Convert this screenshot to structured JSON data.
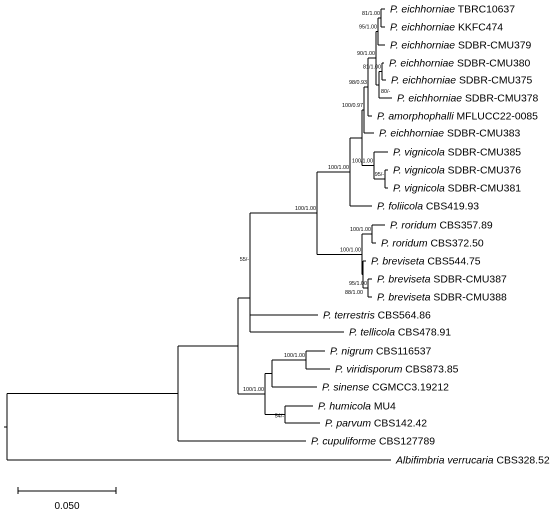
{
  "tree": {
    "taxa": {
      "t1": {
        "genus": "P.",
        "species": "eichhorniae",
        "strain": "TBRC10637"
      },
      "t2": {
        "genus": "P.",
        "species": "eichhorniae",
        "strain": "KKFC474"
      },
      "t3": {
        "genus": "P.",
        "species": "eichhorniae",
        "strain": "SDBR-CMU379"
      },
      "t4": {
        "genus": "P.",
        "species": "eichhorniae",
        "strain": "SDBR-CMU380"
      },
      "t5": {
        "genus": "P.",
        "species": "eichhorniae",
        "strain": "SDBR-CMU375"
      },
      "t6": {
        "genus": "P.",
        "species": "eichhorniae",
        "strain": "SDBR-CMU378"
      },
      "t7": {
        "genus": "P.",
        "species": "amorphophalli",
        "strain": "MFLUCC22-0085"
      },
      "t8": {
        "genus": "P.",
        "species": "eichhorniae",
        "strain": "SDBR-CMU383"
      },
      "t9": {
        "genus": "P.",
        "species": "vignicola",
        "strain": "SDBR-CMU385"
      },
      "t10": {
        "genus": "P.",
        "species": "vignicola",
        "strain": "SDBR-CMU376"
      },
      "t11": {
        "genus": "P.",
        "species": "vignicola",
        "strain": "SDBR-CMU381"
      },
      "t12": {
        "genus": "P.",
        "species": "foliicola",
        "strain": "CBS419.93"
      },
      "t13": {
        "genus": "P.",
        "species": "roridum",
        "strain": "CBS357.89"
      },
      "t14": {
        "genus": "P.",
        "species": "roridum",
        "strain": "CBS372.50"
      },
      "t15": {
        "genus": "P.",
        "species": "breviseta",
        "strain": "CBS544.75"
      },
      "t16": {
        "genus": "P.",
        "species": "breviseta",
        "strain": "SDBR-CMU387"
      },
      "t17": {
        "genus": "P.",
        "species": "breviseta",
        "strain": "SDBR-CMU388"
      },
      "t18": {
        "genus": "P.",
        "species": "terrestris",
        "strain": "CBS564.86"
      },
      "t19": {
        "genus": "P.",
        "species": "tellicola",
        "strain": "CBS478.91"
      },
      "t20": {
        "genus": "P.",
        "species": "nigrum",
        "strain": "CBS116537"
      },
      "t21": {
        "genus": "P.",
        "species": "viridisporum",
        "strain": "CBS873.85"
      },
      "t22": {
        "genus": "P.",
        "species": "sinense",
        "strain": "CGMCC3.19212"
      },
      "t23": {
        "genus": "P.",
        "species": "humicola",
        "strain": "MU4"
      },
      "t24": {
        "genus": "P.",
        "species": "parvum",
        "strain": "CBS142.42"
      },
      "t25": {
        "genus": "P.",
        "species": "cupuliforme",
        "strain": "CBS127789"
      },
      "t26": {
        "genus": "Albifimbria",
        "species": "verrucaria",
        "strain": "CBS328.52"
      }
    },
    "supports": {
      "s_ab": "81/1.00",
      "s_abc": "95/1.00",
      "s_de": "81/1.00",
      "s_def": "80/-",
      "s_dz": "90/1.00",
      "s_ecl": "98/0.93",
      "s_ecv": "100/0.97",
      "s_viga": "100/1.00",
      "s_vigb": "95/-",
      "s_top": "100/1.00",
      "s_big": "100/1.00",
      "s_ror": "100/1.00",
      "s_rb": "100/1.00",
      "s_b23": "95/1.00",
      "s_b3": "88/1.00",
      "s_main": "55/-",
      "s_nv": "100/1.00",
      "s_sin": "100/1.00",
      "s_hp": "54/-"
    },
    "scale_bar_label": "0.050"
  }
}
